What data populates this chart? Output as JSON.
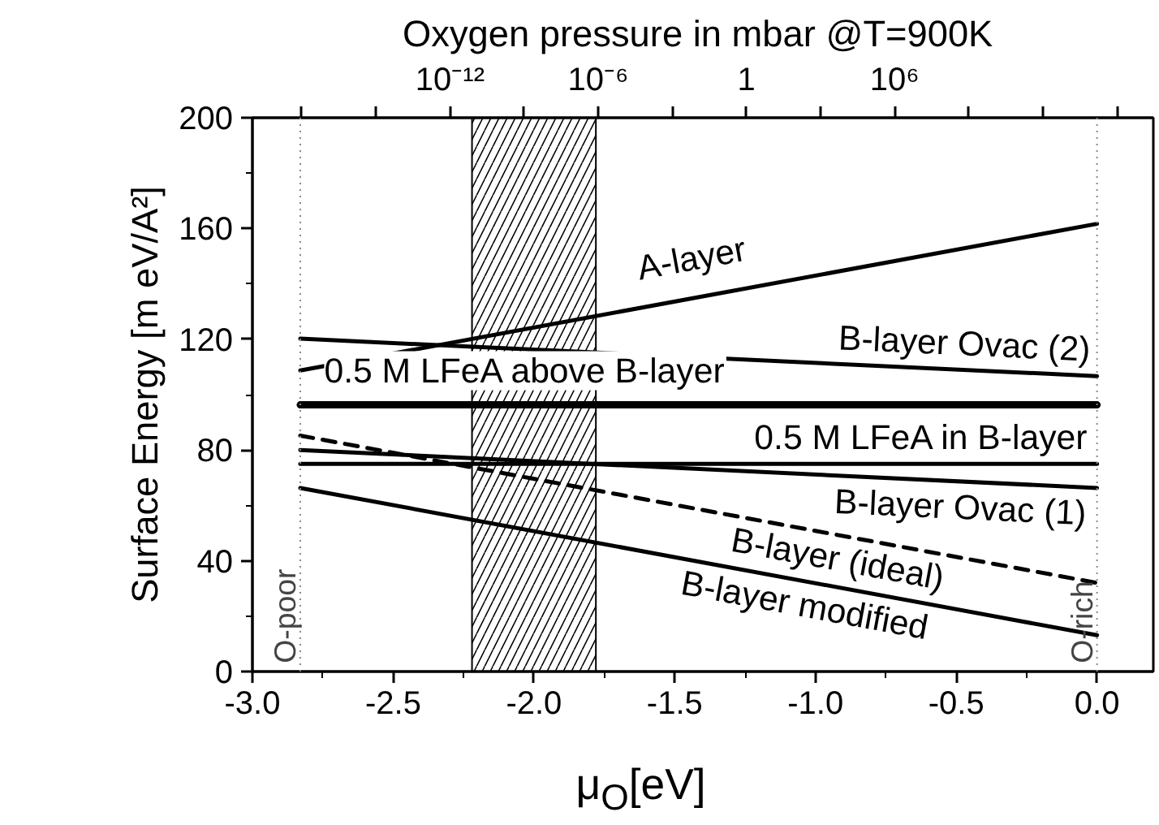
{
  "chart_data": {
    "type": "line",
    "xlabel": "μ$_{O}$[eV]",
    "ylabel": "Surface Energy [m eV/A²]",
    "x2label": "Oxygen pressure in mbar  @T=900K",
    "x": [
      -2.83,
      0.0
    ],
    "xlim": [
      -3.0,
      0.2
    ],
    "xticks": [
      {
        "value": -3.0,
        "label": "-3.0"
      },
      {
        "value": -2.5,
        "label": "-2.5"
      },
      {
        "value": -2.0,
        "label": "-2.0"
      },
      {
        "value": -1.5,
        "label": "-1.5"
      },
      {
        "value": -1.0,
        "label": "-1.0"
      },
      {
        "value": -0.5,
        "label": "-0.5"
      },
      {
        "value": 0.0,
        "label": "0.0"
      }
    ],
    "ylim": [
      0,
      200
    ],
    "yticks": [
      0,
      40,
      80,
      120,
      160,
      200
    ],
    "log": "x2",
    "x2lim": [
      1e-20,
      3e+16
    ],
    "x2ticks": [
      {
        "value": 1e-18,
        "label": null
      },
      {
        "value": 1e-15,
        "label": null
      },
      {
        "value": 1e-12,
        "label": "10⁻¹²"
      },
      {
        "value": 1e-09,
        "label": null
      },
      {
        "value": 1e-06,
        "label": "10⁻⁶"
      },
      {
        "value": 0.001,
        "label": null
      },
      {
        "value": 1,
        "label": "1"
      },
      {
        "value": 1000.0,
        "label": null
      },
      {
        "value": 1000000.0,
        "label": "10⁶"
      },
      {
        "value": 1000000000.0,
        "label": null
      },
      {
        "value": 1000000000000.0,
        "label": null
      },
      {
        "value": 1000000000000000.0,
        "label": null
      }
    ],
    "series": [
      {
        "name": "A-layer",
        "color": "#000000",
        "values": [
          108.7,
          161.7
        ]
      },
      {
        "name": "B-layer Ovac (2)",
        "color": "#000000",
        "values": [
          120.2,
          106.7
        ]
      },
      {
        "name": "0.5 M LFeA above B-layer",
        "color": "#000000",
        "values": [
          96.3,
          96.3
        ]
      },
      {
        "name": "0.5 M LFeA in B-layer",
        "color": "#000000",
        "values": [
          75.0,
          75.0
        ]
      },
      {
        "name": "B-layer Ovac (1)",
        "color": "#000000",
        "values": [
          80.0,
          66.3
        ]
      },
      {
        "name": "B-layer (ideal)",
        "color": "#000000",
        "values": [
          85.2,
          32.0
        ],
        "line_style": "dashed"
      },
      {
        "name": "B-layer modified",
        "color": "#000000",
        "values": [
          66.3,
          13.1
        ]
      }
    ],
    "ref_lines": [
      {
        "axis": "x",
        "value": -2.83,
        "label": "O-poor",
        "line_style": "dotted",
        "color": "#888888"
      },
      {
        "axis": "x",
        "value": 0.0,
        "label": "O-rich",
        "line_style": "dotted",
        "color": "#888888"
      }
    ],
    "bands": [
      {
        "axis": "x",
        "from": -2.22,
        "to": -1.78,
        "color": "#000000"
      }
    ],
    "grid": false,
    "marker": "none",
    "line_style": "solid"
  }
}
